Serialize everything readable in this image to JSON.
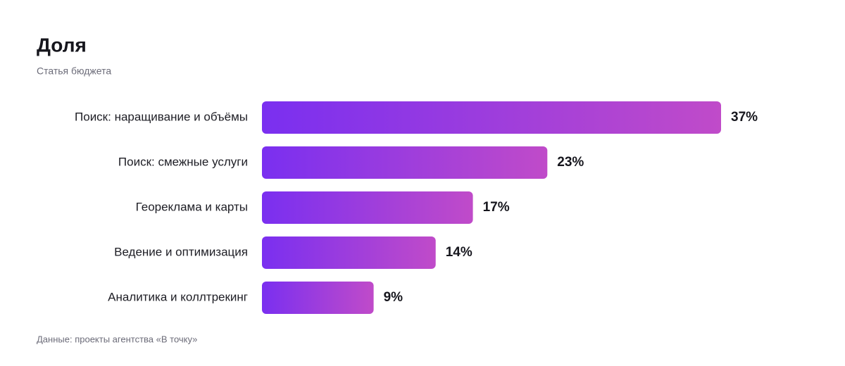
{
  "chart_data": {
    "type": "bar",
    "orientation": "horizontal",
    "title": "Доля",
    "subtitle": "Статья бюджета",
    "categories": [
      "Поиск: наращивание и объёмы",
      "Поиск: смежные услуги",
      "Георекламa и карты",
      "Ведение и оптимизация",
      "Аналитика и коллтрекинг"
    ],
    "values": [
      37,
      23,
      17,
      14,
      9
    ],
    "value_labels": [
      "37%",
      "23%",
      "17%",
      "14%",
      "9%"
    ],
    "gradient": [
      "#7a2ff0",
      "#c04bc9"
    ],
    "source": "Данные: проекты агентства «В точку»"
  }
}
